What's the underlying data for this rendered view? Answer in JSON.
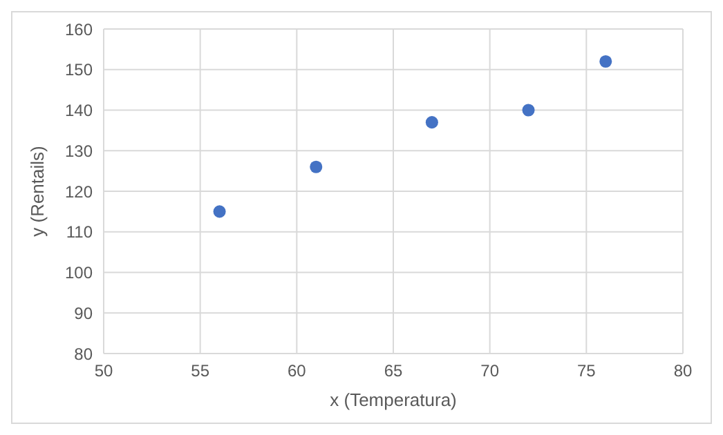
{
  "chart_data": {
    "type": "scatter",
    "xlabel": "x (Temperatura)",
    "ylabel": "y (Rentails)",
    "x": [
      56,
      61,
      67,
      72,
      76
    ],
    "series": [
      {
        "color": "#4472c4",
        "values": [
          115,
          126,
          137,
          140,
          152
        ]
      }
    ],
    "xlim": [
      50,
      80
    ],
    "xticks": [
      50,
      55,
      60,
      65,
      70,
      75,
      80
    ],
    "ylim": [
      80,
      160
    ],
    "yticks": [
      80,
      90,
      100,
      110,
      120,
      130,
      140,
      150,
      160
    ],
    "grid": true,
    "marker": "circle",
    "legend": false
  }
}
